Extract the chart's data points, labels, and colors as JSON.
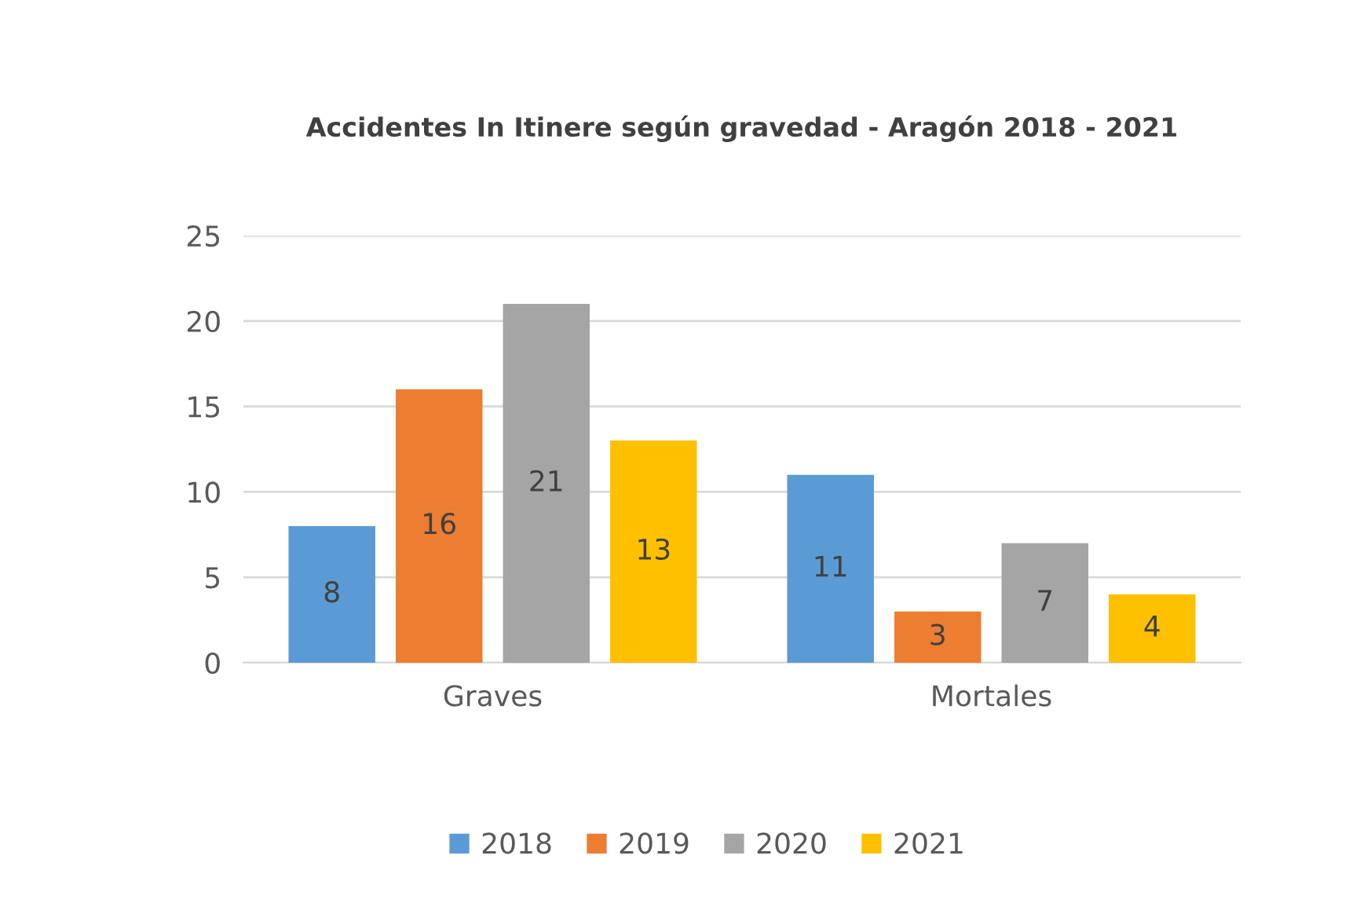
{
  "chart_data": {
    "type": "bar",
    "title": "Accidentes In Itinere según gravedad - Aragón 2018 - 2021",
    "categories": [
      "Graves",
      "Mortales"
    ],
    "series": [
      {
        "name": "2018",
        "color": "#5b9bd5",
        "values": [
          8,
          11
        ]
      },
      {
        "name": "2019",
        "color": "#ed7d31",
        "values": [
          16,
          3
        ]
      },
      {
        "name": "2020",
        "color": "#a5a5a5",
        "values": [
          21,
          7
        ]
      },
      {
        "name": "2021",
        "color": "#ffc000",
        "values": [
          13,
          4
        ]
      }
    ],
    "ylim": [
      0,
      25
    ],
    "yticks": [
      0,
      5,
      10,
      15,
      20,
      25
    ],
    "grid": "y",
    "legend": "bottom",
    "data_labels": true
  }
}
